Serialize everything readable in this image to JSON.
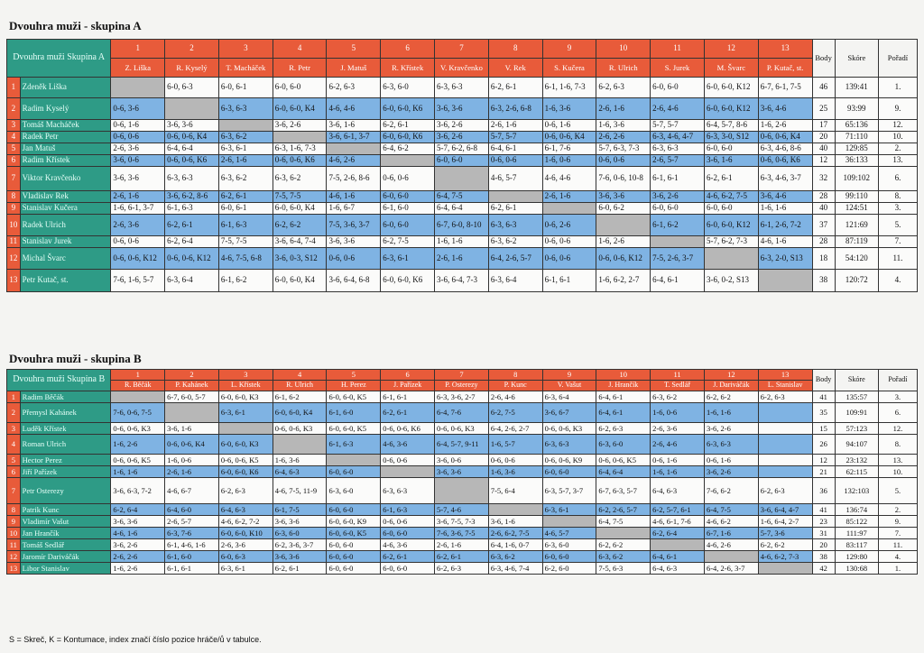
{
  "groupA": {
    "title": "Dvouhra muži - skupina A",
    "corner": "Dvouhra muži Skupina A",
    "short_names": [
      "Z. Liška",
      "R. Kyselý",
      "T. Macháček",
      "R. Petr",
      "J. Matuš",
      "R. Křístek",
      "V. Kravčenko",
      "V. Rek",
      "S. Kučera",
      "R. Ulrich",
      "S. Jurek",
      "M. Švarc",
      "P. Kutač, st."
    ],
    "headers": {
      "body": "Body",
      "skore": "Skóre",
      "poradi": "Pořadí"
    },
    "players": [
      {
        "num": "1",
        "name": "Zdeněk Liška",
        "results": [
          "",
          "6-0, 6-3",
          "6-0, 6-1",
          "6-0, 6-0",
          "6-2, 6-3",
          "6-3, 6-0",
          "6-3, 6-3",
          "6-2, 6-1",
          "6-1, 1-6, 7-3",
          "6-2, 6-3",
          "6-0, 6-0",
          "6-0, 6-0, K12",
          "6-7, 6-1, 7-5"
        ],
        "body": "46",
        "skore": "139:41",
        "poradi": "1."
      },
      {
        "num": "2",
        "name": "Radim Kyselý",
        "results": [
          "0-6, 3-6",
          "",
          "6-3, 6-3",
          "6-0, 6-0, K4",
          "4-6, 4-6",
          "6-0, 6-0, K6",
          "3-6, 3-6",
          "6-3, 2-6, 6-8",
          "1-6, 3-6",
          "2-6, 1-6",
          "2-6, 4-6",
          "6-0, 6-0, K12",
          "3-6, 4-6"
        ],
        "body": "25",
        "skore": "93:99",
        "poradi": "9."
      },
      {
        "num": "3",
        "name": "Tomáš Macháček",
        "results": [
          "0-6, 1-6",
          "3-6, 3-6",
          "",
          "3-6, 2-6",
          "3-6, 1-6",
          "6-2, 6-1",
          "3-6, 2-6",
          "2-6, 1-6",
          "0-6, 1-6",
          "1-6, 3-6",
          "5-7, 5-7",
          "6-4, 5-7, 8-6",
          "1-6, 2-6"
        ],
        "body": "17",
        "skore": "65:136",
        "poradi": "12."
      },
      {
        "num": "4",
        "name": "Radek Petr",
        "results": [
          "0-6, 0-6",
          "0-6, 0-6, K4",
          "6-3, 6-2",
          "",
          "3-6, 6-1, 3-7",
          "6-0, 6-0, K6",
          "3-6, 2-6",
          "5-7, 5-7",
          "0-6, 0-6, K4",
          "2-6, 2-6",
          "6-3, 4-6, 4-7",
          "6-3, 3-0, S12",
          "0-6, 0-6, K4"
        ],
        "body": "20",
        "skore": "71:110",
        "poradi": "10."
      },
      {
        "num": "5",
        "name": "Jan Matuš",
        "results": [
          "2-6, 3-6",
          "6-4, 6-4",
          "6-3, 6-1",
          "6-3, 1-6, 7-3",
          "",
          "6-4, 6-2",
          "5-7, 6-2, 6-8",
          "6-4, 6-1",
          "6-1, 7-6",
          "5-7, 6-3, 7-3",
          "6-3, 6-3",
          "6-0, 6-0",
          "6-3, 4-6, 8-6"
        ],
        "body": "40",
        "skore": "129:85",
        "poradi": "2."
      },
      {
        "num": "6",
        "name": "Radim Křístek",
        "results": [
          "3-6, 0-6",
          "0-6, 0-6, K6",
          "2-6, 1-6",
          "0-6, 0-6, K6",
          "4-6, 2-6",
          "",
          "6-0, 6-0",
          "0-6, 0-6",
          "1-6, 0-6",
          "0-6, 0-6",
          "2-6, 5-7",
          "3-6, 1-6",
          "0-6, 0-6, K6"
        ],
        "body": "12",
        "skore": "36:133",
        "poradi": "13."
      },
      {
        "num": "7",
        "name": "Viktor Kravčenko",
        "results": [
          "3-6, 3-6",
          "6-3, 6-3",
          "6-3, 6-2",
          "6-3, 6-2",
          "7-5, 2-6, 8-6",
          "0-6, 0-6",
          "",
          "4-6, 5-7",
          "4-6, 4-6",
          "7-6, 0-6, 10-8",
          "6-1, 6-1",
          "6-2, 6-1",
          "6-3, 4-6, 3-7"
        ],
        "body": "32",
        "skore": "109:102",
        "poradi": "6."
      },
      {
        "num": "8",
        "name": "Vladislav Rek",
        "results": [
          "2-6, 1-6",
          "3-6, 6-2, 8-6",
          "6-2, 6-1",
          "7-5, 7-5",
          "4-6, 1-6",
          "6-0, 6-0",
          "6-4, 7-5",
          "",
          "2-6, 1-6",
          "3-6, 3-6",
          "3-6, 2-6",
          "4-6, 6-2, 7-5",
          "3-6, 4-6"
        ],
        "body": "28",
        "skore": "99:110",
        "poradi": "8."
      },
      {
        "num": "9",
        "name": "Stanislav Kučera",
        "results": [
          "1-6, 6-1, 3-7",
          "6-1, 6-3",
          "6-0, 6-1",
          "6-0, 6-0, K4",
          "1-6, 6-7",
          "6-1, 6-0",
          "6-4, 6-4",
          "6-2, 6-1",
          "",
          "6-0, 6-2",
          "6-0, 6-0",
          "6-0, 6-0",
          "1-6, 1-6"
        ],
        "body": "40",
        "skore": "124:51",
        "poradi": "3."
      },
      {
        "num": "10",
        "name": "Radek Ulrich",
        "results": [
          "2-6, 3-6",
          "6-2, 6-1",
          "6-1, 6-3",
          "6-2, 6-2",
          "7-5, 3-6, 3-7",
          "6-0, 6-0",
          "6-7, 6-0, 8-10",
          "6-3, 6-3",
          "0-6, 2-6",
          "",
          "6-1, 6-2",
          "6-0, 6-0, K12",
          "6-1, 2-6, 7-2"
        ],
        "body": "37",
        "skore": "121:69",
        "poradi": "5."
      },
      {
        "num": "11",
        "name": "Stanislav Jurek",
        "results": [
          "0-6, 0-6",
          "6-2, 6-4",
          "7-5, 7-5",
          "3-6, 6-4, 7-4",
          "3-6, 3-6",
          "6-2, 7-5",
          "1-6, 1-6",
          "6-3, 6-2",
          "0-6, 0-6",
          "1-6, 2-6",
          "",
          "5-7, 6-2, 7-3",
          "4-6, 1-6"
        ],
        "body": "28",
        "skore": "87:119",
        "poradi": "7."
      },
      {
        "num": "12",
        "name": "Michal Švarc",
        "results": [
          "0-6, 0-6, K12",
          "0-6, 0-6, K12",
          "4-6, 7-5, 6-8",
          "3-6, 0-3, S12",
          "0-6, 0-6",
          "6-3, 6-1",
          "2-6, 1-6",
          "6-4, 2-6, 5-7",
          "0-6, 0-6",
          "0-6, 0-6, K12",
          "7-5, 2-6, 3-7",
          "",
          "6-3, 2-0, S13"
        ],
        "body": "18",
        "skore": "54:120",
        "poradi": "11."
      },
      {
        "num": "13",
        "name": "Petr Kutač, st.",
        "results": [
          "7-6, 1-6, 5-7",
          "6-3, 6-4",
          "6-1, 6-2",
          "6-0, 6-0, K4",
          "3-6, 6-4, 6-8",
          "6-0, 6-0, K6",
          "3-6, 6-4, 7-3",
          "6-3, 6-4",
          "6-1, 6-1",
          "1-6, 6-2, 2-7",
          "6-4, 6-1",
          "3-6, 0-2, S13",
          ""
        ],
        "body": "38",
        "skore": "120:72",
        "poradi": "4."
      }
    ]
  },
  "groupB": {
    "title": "Dvouhra muži - skupina B",
    "corner": "Dvouhra muži Skupina B",
    "short_names": [
      "R. Běčák",
      "P. Kahánek",
      "L. Křístek",
      "R. Ulrich",
      "H. Perez",
      "J. Pařízek",
      "P. Osterezy",
      "P. Kunc",
      "V. Vašut",
      "J. Hrančík",
      "T. Sedlář",
      "J. Dariváčák",
      "L. Stanislav"
    ],
    "headers": {
      "body": "Body",
      "skore": "Skóre",
      "poradi": "Pořadí"
    },
    "players": [
      {
        "num": "1",
        "name": "Radim Běčák",
        "results": [
          "",
          "6-7, 6-0, 5-7",
          "6-0, 6-0, K3",
          "6-1, 6-2",
          "6-0, 6-0, K5",
          "6-1, 6-1",
          "6-3, 3-6, 2-7",
          "2-6, 4-6",
          "6-3, 6-4",
          "6-4, 6-1",
          "6-3, 6-2",
          "6-2, 6-2",
          "6-2, 6-3"
        ],
        "body": "41",
        "skore": "135:57",
        "poradi": "3."
      },
      {
        "num": "2",
        "name": "Přemysl Kahánek",
        "results": [
          "7-6, 0-6, 7-5",
          "",
          "6-3, 6-1",
          "6-0, 6-0, K4",
          "6-1, 6-0",
          "6-2, 6-1",
          "6-4, 7-6",
          "6-2, 7-5",
          "3-6, 6-7",
          "6-4, 6-1",
          "1-6, 0-6",
          "1-6, 1-6",
          ""
        ],
        "body": "35",
        "skore": "109:91",
        "poradi": "6."
      },
      {
        "num": "3",
        "name": "Luděk Křístek",
        "results": [
          "0-6, 0-6, K3",
          "3-6, 1-6",
          "",
          "0-6, 0-6, K3",
          "6-0, 6-0, K5",
          "0-6, 0-6, K6",
          "0-6, 0-6, K3",
          "6-4, 2-6, 2-7",
          "0-6, 0-6, K3",
          "6-2, 6-3",
          "2-6, 3-6",
          "3-6, 2-6",
          ""
        ],
        "body": "15",
        "skore": "57:123",
        "poradi": "12."
      },
      {
        "num": "4",
        "name": "Roman Ulrich",
        "results": [
          "1-6, 2-6",
          "0-6, 0-6, K4",
          "6-0, 6-0, K3",
          "",
          "6-1, 6-3",
          "4-6, 3-6",
          "6-4, 5-7, 9-11",
          "1-6, 5-7",
          "6-3, 6-3",
          "6-3, 6-0",
          "2-6, 4-6",
          "6-3, 6-3",
          ""
        ],
        "body": "26",
        "skore": "94:107",
        "poradi": "8."
      },
      {
        "num": "5",
        "name": "Hector Perez",
        "results": [
          "0-6, 0-6, K5",
          "1-6, 0-6",
          "0-6, 0-6, K5",
          "1-6, 3-6",
          "",
          "0-6, 0-6",
          "3-6, 0-6",
          "0-6, 0-6",
          "0-6, 0-6, K9",
          "0-6, 0-6, K5",
          "0-6, 1-6",
          "0-6, 1-6",
          ""
        ],
        "body": "12",
        "skore": "23:132",
        "poradi": "13."
      },
      {
        "num": "6",
        "name": "Jiří Pařízek",
        "results": [
          "1-6, 1-6",
          "2-6, 1-6",
          "6-0, 6-0, K6",
          "6-4, 6-3",
          "6-0, 6-0",
          "",
          "3-6, 3-6",
          "1-6, 3-6",
          "6-0, 6-0",
          "6-4, 6-4",
          "1-6, 1-6",
          "3-6, 2-6",
          ""
        ],
        "body": "21",
        "skore": "62:115",
        "poradi": "10."
      },
      {
        "num": "7",
        "name": "Petr Osterezy",
        "results": [
          "3-6, 6-3, 7-2",
          "4-6, 6-7",
          "6-2, 6-3",
          "4-6, 7-5, 11-9",
          "6-3, 6-0",
          "6-3, 6-3",
          "",
          "7-5, 6-4",
          "6-3, 5-7, 3-7",
          "6-7, 6-3, 5-7",
          "6-4, 6-3",
          "7-6, 6-2",
          "6-2, 6-3"
        ],
        "body": "36",
        "skore": "132:103",
        "poradi": "5."
      },
      {
        "num": "8",
        "name": "Patrik Kunc",
        "results": [
          "6-2, 6-4",
          "6-4, 6-0",
          "6-4, 6-3",
          "6-1, 7-5",
          "6-0, 6-0",
          "6-1, 6-3",
          "5-7, 4-6",
          "",
          "6-3, 6-1",
          "6-2, 2-6, 5-7",
          "6-2, 5-7, 6-1",
          "6-4, 7-5",
          "3-6, 6-4, 4-7"
        ],
        "body": "41",
        "skore": "136:74",
        "poradi": "2."
      },
      {
        "num": "9",
        "name": "Vladimír Vašut",
        "results": [
          "3-6, 3-6",
          "2-6, 5-7",
          "4-6, 6-2, 7-2",
          "3-6, 3-6",
          "6-0, 6-0, K9",
          "0-6, 0-6",
          "3-6, 7-5, 7-3",
          "3-6, 1-6",
          "",
          "6-4, 7-5",
          "4-6, 6-1, 7-6",
          "4-6, 6-2",
          "1-6, 6-4, 2-7"
        ],
        "body": "23",
        "skore": "85:122",
        "poradi": "9."
      },
      {
        "num": "10",
        "name": "Jan Hrančík",
        "results": [
          "4-6, 1-6",
          "6-3, 7-6",
          "6-0, 6-0, K10",
          "6-3, 6-0",
          "6-0, 6-0, K5",
          "6-0, 6-0",
          "7-6, 3-6, 7-5",
          "2-6, 6-2, 7-5",
          "4-6, 5-7",
          "",
          "6-2, 6-4",
          "6-7, 1-6",
          "5-7, 3-6"
        ],
        "body": "31",
        "skore": "111:97",
        "poradi": "7."
      },
      {
        "num": "11",
        "name": "Tomáš Sedlář",
        "results": [
          "3-6, 2-6",
          "6-1, 4-6, 1-6",
          "2-6, 3-6",
          "6-2, 3-6, 3-7",
          "6-0, 6-0",
          "4-6, 3-6",
          "2-6, 1-6",
          "6-4, 1-6, 0-7",
          "6-3, 6-0",
          "6-2, 6-2",
          "",
          "4-6, 2-6",
          "6-2, 6-2"
        ],
        "body": "20",
        "skore": "83:117",
        "poradi": "11."
      },
      {
        "num": "12",
        "name": "Jaromír Dariváčák",
        "results": [
          "2-6, 2-6",
          "6-1, 6-0",
          "6-0, 6-3",
          "3-6, 3-6",
          "6-0, 6-0",
          "6-2, 6-1",
          "6-2, 6-1",
          "6-3, 6-2",
          "6-0, 6-0",
          "6-3, 6-2",
          "6-4, 6-1",
          "",
          "4-6, 6-2, 7-3"
        ],
        "body": "38",
        "skore": "129:80",
        "poradi": "4."
      },
      {
        "num": "13",
        "name": "Libor Stanislav",
        "results": [
          "1-6, 2-6",
          "6-1, 6-1",
          "6-3, 6-1",
          "6-2, 6-1",
          "6-0, 6-0",
          "6-0, 6-0",
          "6-2, 6-3",
          "6-3, 4-6, 7-4",
          "6-2, 6-0",
          "7-5, 6-3",
          "6-4, 6-3",
          "6-4, 2-6, 3-7",
          ""
        ],
        "body": "42",
        "skore": "130:68",
        "poradi": "1."
      }
    ]
  },
  "footnote": "S = Skreč, K = Kontumace, index značí číslo pozice hráče/ů v tabulce.",
  "colors": {
    "header_red": "#e85b3a",
    "corner_teal": "#2e9b86",
    "band_blue": "#7fb3e3",
    "diagonal_grey": "#b7b7b7"
  }
}
